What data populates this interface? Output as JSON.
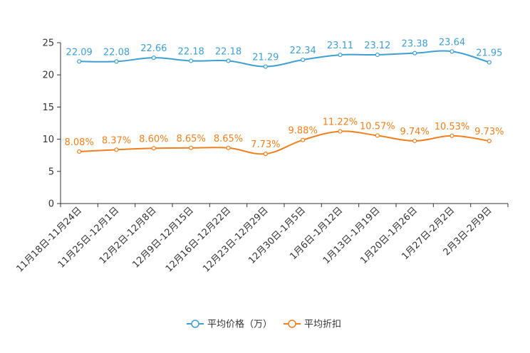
{
  "chart_data": {
    "type": "line",
    "categories": [
      "11月18日-11月24日",
      "11月25日-12月1日",
      "12月2日-12月8日",
      "12月9日-12月15日",
      "12月16日-12月22日",
      "12月23日-12月29日",
      "12月30日-1月5日",
      "1月6日-1月12日",
      "1月13日-1月19日",
      "1月20日-1月26日",
      "1月27日-2月2日",
      "2月3日-2月9日"
    ],
    "ylim": [
      0,
      25
    ],
    "yticks": [
      0,
      5,
      10,
      15,
      20,
      25
    ],
    "series": [
      {
        "name": "平均价格（万）",
        "color": "#3e9fd0",
        "values": [
          22.09,
          22.08,
          22.66,
          22.18,
          22.18,
          21.29,
          22.34,
          23.11,
          23.12,
          23.38,
          23.64,
          21.95
        ],
        "labels": [
          "22.09",
          "22.08",
          "22.66",
          "22.18",
          "22.18",
          "21.29",
          "22.34",
          "23.11",
          "23.12",
          "23.38",
          "23.64",
          "21.95"
        ]
      },
      {
        "name": "平均折扣",
        "color": "#f07f1d",
        "values": [
          8.08,
          8.37,
          8.6,
          8.65,
          8.65,
          7.73,
          9.88,
          11.22,
          10.57,
          9.74,
          10.53,
          9.73
        ],
        "labels": [
          "8.08%",
          "8.37%",
          "8.60%",
          "8.65%",
          "8.65%",
          "7.73%",
          "9.88%",
          "11.22%",
          "10.57%",
          "9.74%",
          "10.53%",
          "9.73%"
        ]
      }
    ],
    "legend_position": "bottom-center"
  }
}
